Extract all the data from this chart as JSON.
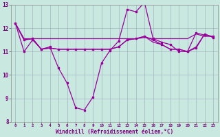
{
  "xlabel": "Windchill (Refroidissement éolien,°C)",
  "background_color": "#c8e8e0",
  "line_color": "#990099",
  "grid_color": "#99aabb",
  "xlim": [
    -0.5,
    23.5
  ],
  "ylim": [
    8,
    13
  ],
  "yticks": [
    8,
    9,
    10,
    11,
    12,
    13
  ],
  "xticks": [
    0,
    1,
    2,
    3,
    4,
    5,
    6,
    7,
    8,
    9,
    10,
    11,
    12,
    13,
    14,
    15,
    16,
    17,
    18,
    19,
    20,
    21,
    22,
    23
  ],
  "series1_x": [
    0,
    1,
    2,
    3,
    4,
    5,
    6,
    7,
    8,
    9,
    10,
    11,
    12,
    13,
    14,
    15,
    16,
    17,
    18,
    19,
    20,
    21,
    22,
    23
  ],
  "series1_y": [
    12.2,
    11.0,
    11.5,
    11.1,
    11.2,
    10.3,
    9.65,
    8.6,
    8.5,
    9.05,
    10.5,
    11.05,
    11.45,
    12.8,
    12.7,
    13.1,
    11.55,
    11.4,
    11.3,
    11.0,
    11.0,
    11.8,
    11.7,
    11.65
  ],
  "series2_x": [
    0,
    1,
    2,
    3,
    4,
    5,
    6,
    7,
    8,
    9,
    10,
    11,
    12,
    13,
    14,
    15,
    16,
    17,
    18,
    19,
    20,
    21,
    22,
    23
  ],
  "series2_y": [
    12.2,
    11.55,
    11.55,
    11.55,
    11.55,
    11.55,
    11.55,
    11.55,
    11.55,
    11.55,
    11.55,
    11.55,
    11.55,
    11.55,
    11.55,
    11.6,
    11.55,
    11.55,
    11.55,
    11.55,
    11.55,
    11.75,
    11.65,
    11.65
  ],
  "series3_x": [
    0,
    1,
    2,
    3,
    4,
    5,
    6,
    7,
    8,
    9,
    10,
    11,
    12,
    13,
    14,
    15,
    16,
    17,
    18,
    19,
    20,
    21,
    22,
    23
  ],
  "series3_y": [
    12.2,
    11.5,
    11.55,
    11.1,
    11.15,
    11.1,
    11.1,
    11.1,
    11.1,
    11.1,
    11.1,
    11.1,
    11.2,
    11.5,
    11.55,
    11.65,
    11.5,
    11.3,
    11.1,
    11.1,
    11.0,
    11.15,
    11.75,
    11.6
  ],
  "series4_x": [
    0,
    1,
    2,
    3,
    4,
    5,
    6,
    7,
    8,
    9,
    10,
    11,
    12,
    13,
    14,
    15,
    16,
    17,
    18,
    19,
    20,
    21,
    22,
    23
  ],
  "series4_y": [
    12.2,
    11.5,
    11.55,
    11.1,
    11.15,
    11.1,
    11.1,
    11.1,
    11.1,
    11.1,
    11.1,
    11.1,
    11.2,
    11.5,
    11.55,
    11.65,
    11.4,
    11.3,
    11.1,
    11.1,
    11.0,
    11.2,
    11.75,
    11.6
  ]
}
